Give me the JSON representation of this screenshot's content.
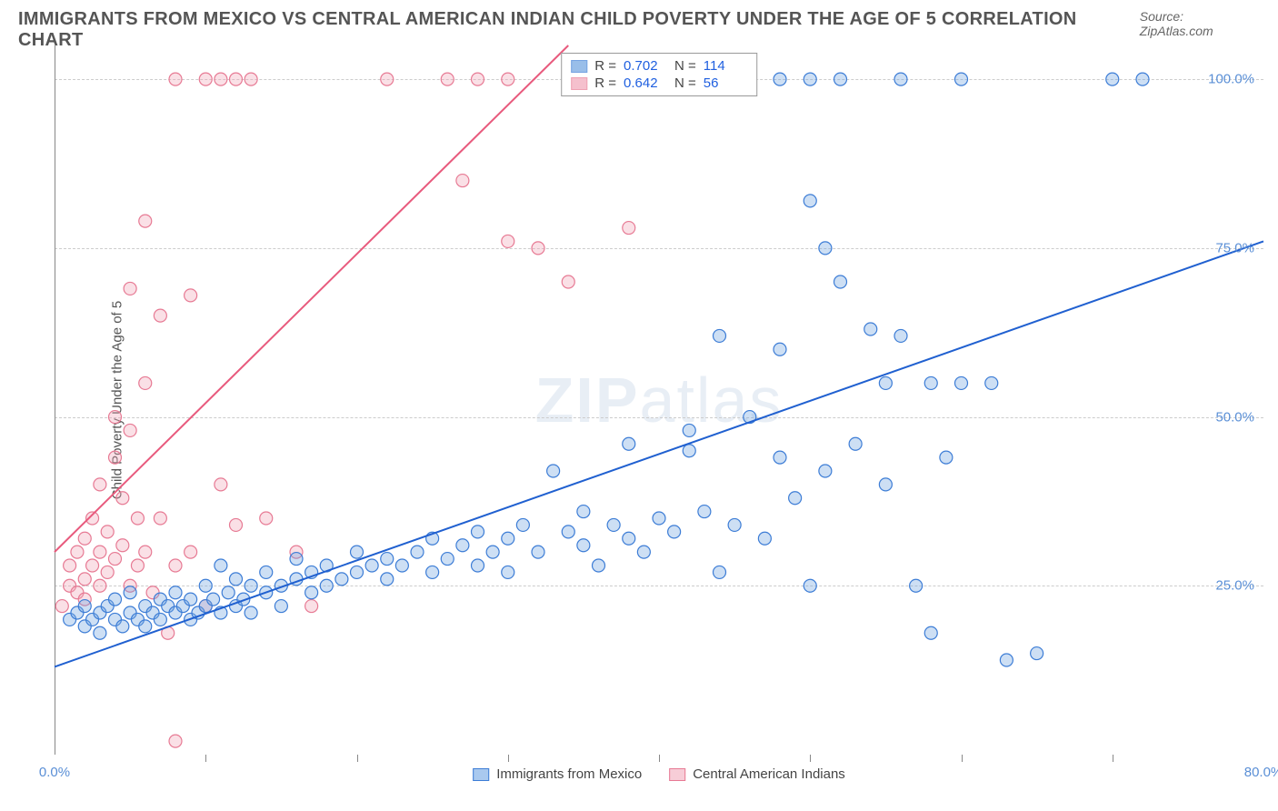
{
  "title": "IMMIGRANTS FROM MEXICO VS CENTRAL AMERICAN INDIAN CHILD POVERTY UNDER THE AGE OF 5 CORRELATION CHART",
  "source": "Source: ZipAtlas.com",
  "watermark_heavy": "ZIP",
  "watermark_light": "atlas",
  "y_axis_label": "Child Poverty Under the Age of 5",
  "chart": {
    "type": "scatter",
    "xlim": [
      0,
      80
    ],
    "ylim": [
      0,
      105
    ],
    "x_ticks": [
      0,
      80
    ],
    "x_tick_labels": [
      "0.0%",
      "80.0%"
    ],
    "x_minor_ticks": [
      10,
      20,
      30,
      40,
      50,
      60,
      70
    ],
    "y_ticks": [
      25,
      50,
      75,
      100
    ],
    "y_tick_labels": [
      "25.0%",
      "50.0%",
      "75.0%",
      "100.0%"
    ],
    "grid_color": "#cccccc",
    "background_color": "#ffffff",
    "axis_color": "#888888",
    "tick_label_color": "#5a8fd6",
    "label_fontsize": 15,
    "marker_radius": 7,
    "marker_fill_opacity": 0.35,
    "marker_stroke_width": 1.2,
    "trend_line_width": 2,
    "series": [
      {
        "name": "Immigrants from Mexico",
        "color": "#6fa3e0",
        "stroke": "#3d7dd6",
        "line_color": "#2060d0",
        "R": "0.702",
        "N": "114",
        "trend": {
          "x1": 0,
          "y1": 13,
          "x2": 80,
          "y2": 76
        },
        "points": [
          [
            1,
            20
          ],
          [
            1.5,
            21
          ],
          [
            2,
            19
          ],
          [
            2,
            22
          ],
          [
            2.5,
            20
          ],
          [
            3,
            21
          ],
          [
            3,
            18
          ],
          [
            3.5,
            22
          ],
          [
            4,
            20
          ],
          [
            4,
            23
          ],
          [
            4.5,
            19
          ],
          [
            5,
            21
          ],
          [
            5,
            24
          ],
          [
            5.5,
            20
          ],
          [
            6,
            22
          ],
          [
            6,
            19
          ],
          [
            6.5,
            21
          ],
          [
            7,
            23
          ],
          [
            7,
            20
          ],
          [
            7.5,
            22
          ],
          [
            8,
            21
          ],
          [
            8,
            24
          ],
          [
            8.5,
            22
          ],
          [
            9,
            20
          ],
          [
            9,
            23
          ],
          [
            9.5,
            21
          ],
          [
            10,
            22
          ],
          [
            10,
            25
          ],
          [
            10.5,
            23
          ],
          [
            11,
            21
          ],
          [
            11,
            28
          ],
          [
            11.5,
            24
          ],
          [
            12,
            22
          ],
          [
            12,
            26
          ],
          [
            12.5,
            23
          ],
          [
            13,
            25
          ],
          [
            13,
            21
          ],
          [
            14,
            24
          ],
          [
            14,
            27
          ],
          [
            15,
            25
          ],
          [
            15,
            22
          ],
          [
            16,
            26
          ],
          [
            16,
            29
          ],
          [
            17,
            24
          ],
          [
            17,
            27
          ],
          [
            18,
            25
          ],
          [
            18,
            28
          ],
          [
            19,
            26
          ],
          [
            20,
            27
          ],
          [
            20,
            30
          ],
          [
            21,
            28
          ],
          [
            22,
            26
          ],
          [
            22,
            29
          ],
          [
            23,
            28
          ],
          [
            24,
            30
          ],
          [
            25,
            27
          ],
          [
            25,
            32
          ],
          [
            26,
            29
          ],
          [
            27,
            31
          ],
          [
            28,
            28
          ],
          [
            28,
            33
          ],
          [
            29,
            30
          ],
          [
            30,
            32
          ],
          [
            30,
            27
          ],
          [
            31,
            34
          ],
          [
            32,
            30
          ],
          [
            33,
            42
          ],
          [
            34,
            33
          ],
          [
            35,
            31
          ],
          [
            35,
            36
          ],
          [
            36,
            28
          ],
          [
            37,
            34
          ],
          [
            38,
            46
          ],
          [
            38,
            32
          ],
          [
            39,
            30
          ],
          [
            40,
            35
          ],
          [
            41,
            33
          ],
          [
            42,
            48
          ],
          [
            42,
            45
          ],
          [
            43,
            36
          ],
          [
            44,
            27
          ],
          [
            44,
            62
          ],
          [
            45,
            34
          ],
          [
            46,
            50
          ],
          [
            47,
            32
          ],
          [
            48,
            60
          ],
          [
            48,
            44
          ],
          [
            49,
            38
          ],
          [
            50,
            25
          ],
          [
            50,
            82
          ],
          [
            51,
            75
          ],
          [
            51,
            42
          ],
          [
            52,
            70
          ],
          [
            53,
            46
          ],
          [
            54,
            63
          ],
          [
            55,
            40
          ],
          [
            55,
            55
          ],
          [
            56,
            62
          ],
          [
            57,
            25
          ],
          [
            58,
            55
          ],
          [
            58,
            18
          ],
          [
            59,
            44
          ],
          [
            60,
            55
          ],
          [
            62,
            55
          ],
          [
            63,
            14
          ],
          [
            65,
            15
          ],
          [
            52,
            100
          ],
          [
            56,
            100
          ],
          [
            60,
            100
          ],
          [
            70,
            100
          ],
          [
            72,
            100
          ],
          [
            48,
            100
          ],
          [
            46,
            100
          ],
          [
            50,
            100
          ]
        ]
      },
      {
        "name": "Central American Indians",
        "color": "#f2a6b8",
        "stroke": "#e77a94",
        "line_color": "#e85a7d",
        "R": "0.642",
        "N": "56",
        "trend": {
          "x1": 0,
          "y1": 30,
          "x2": 34,
          "y2": 105
        },
        "points": [
          [
            0.5,
            22
          ],
          [
            1,
            25
          ],
          [
            1,
            28
          ],
          [
            1.5,
            24
          ],
          [
            1.5,
            30
          ],
          [
            2,
            26
          ],
          [
            2,
            32
          ],
          [
            2,
            23
          ],
          [
            2.5,
            28
          ],
          [
            2.5,
            35
          ],
          [
            3,
            25
          ],
          [
            3,
            30
          ],
          [
            3,
            40
          ],
          [
            3.5,
            27
          ],
          [
            3.5,
            33
          ],
          [
            4,
            29
          ],
          [
            4,
            44
          ],
          [
            4,
            50
          ],
          [
            4.5,
            31
          ],
          [
            4.5,
            38
          ],
          [
            5,
            25
          ],
          [
            5,
            48
          ],
          [
            5,
            69
          ],
          [
            5.5,
            28
          ],
          [
            5.5,
            35
          ],
          [
            6,
            30
          ],
          [
            6,
            79
          ],
          [
            6,
            55
          ],
          [
            6.5,
            24
          ],
          [
            7,
            35
          ],
          [
            7,
            65
          ],
          [
            7.5,
            18
          ],
          [
            8,
            100
          ],
          [
            8,
            28
          ],
          [
            9,
            68
          ],
          [
            9,
            30
          ],
          [
            10,
            100
          ],
          [
            10,
            22
          ],
          [
            11,
            100
          ],
          [
            11,
            40
          ],
          [
            12,
            100
          ],
          [
            12,
            34
          ],
          [
            13,
            100
          ],
          [
            14,
            35
          ],
          [
            16,
            30
          ],
          [
            17,
            22
          ],
          [
            8,
            2
          ],
          [
            22,
            100
          ],
          [
            26,
            100
          ],
          [
            27,
            85
          ],
          [
            28,
            100
          ],
          [
            30,
            100
          ],
          [
            30,
            76
          ],
          [
            32,
            75
          ],
          [
            34,
            70
          ],
          [
            38,
            78
          ]
        ]
      }
    ]
  },
  "legend_stats_labels": {
    "R": "R =",
    "N": "N ="
  },
  "bottom_legend": [
    {
      "label": "Immigrants from Mexico",
      "fill": "#a9c9ef",
      "stroke": "#3d7dd6"
    },
    {
      "label": "Central American Indians",
      "fill": "#f7cdd7",
      "stroke": "#e77a94"
    }
  ]
}
